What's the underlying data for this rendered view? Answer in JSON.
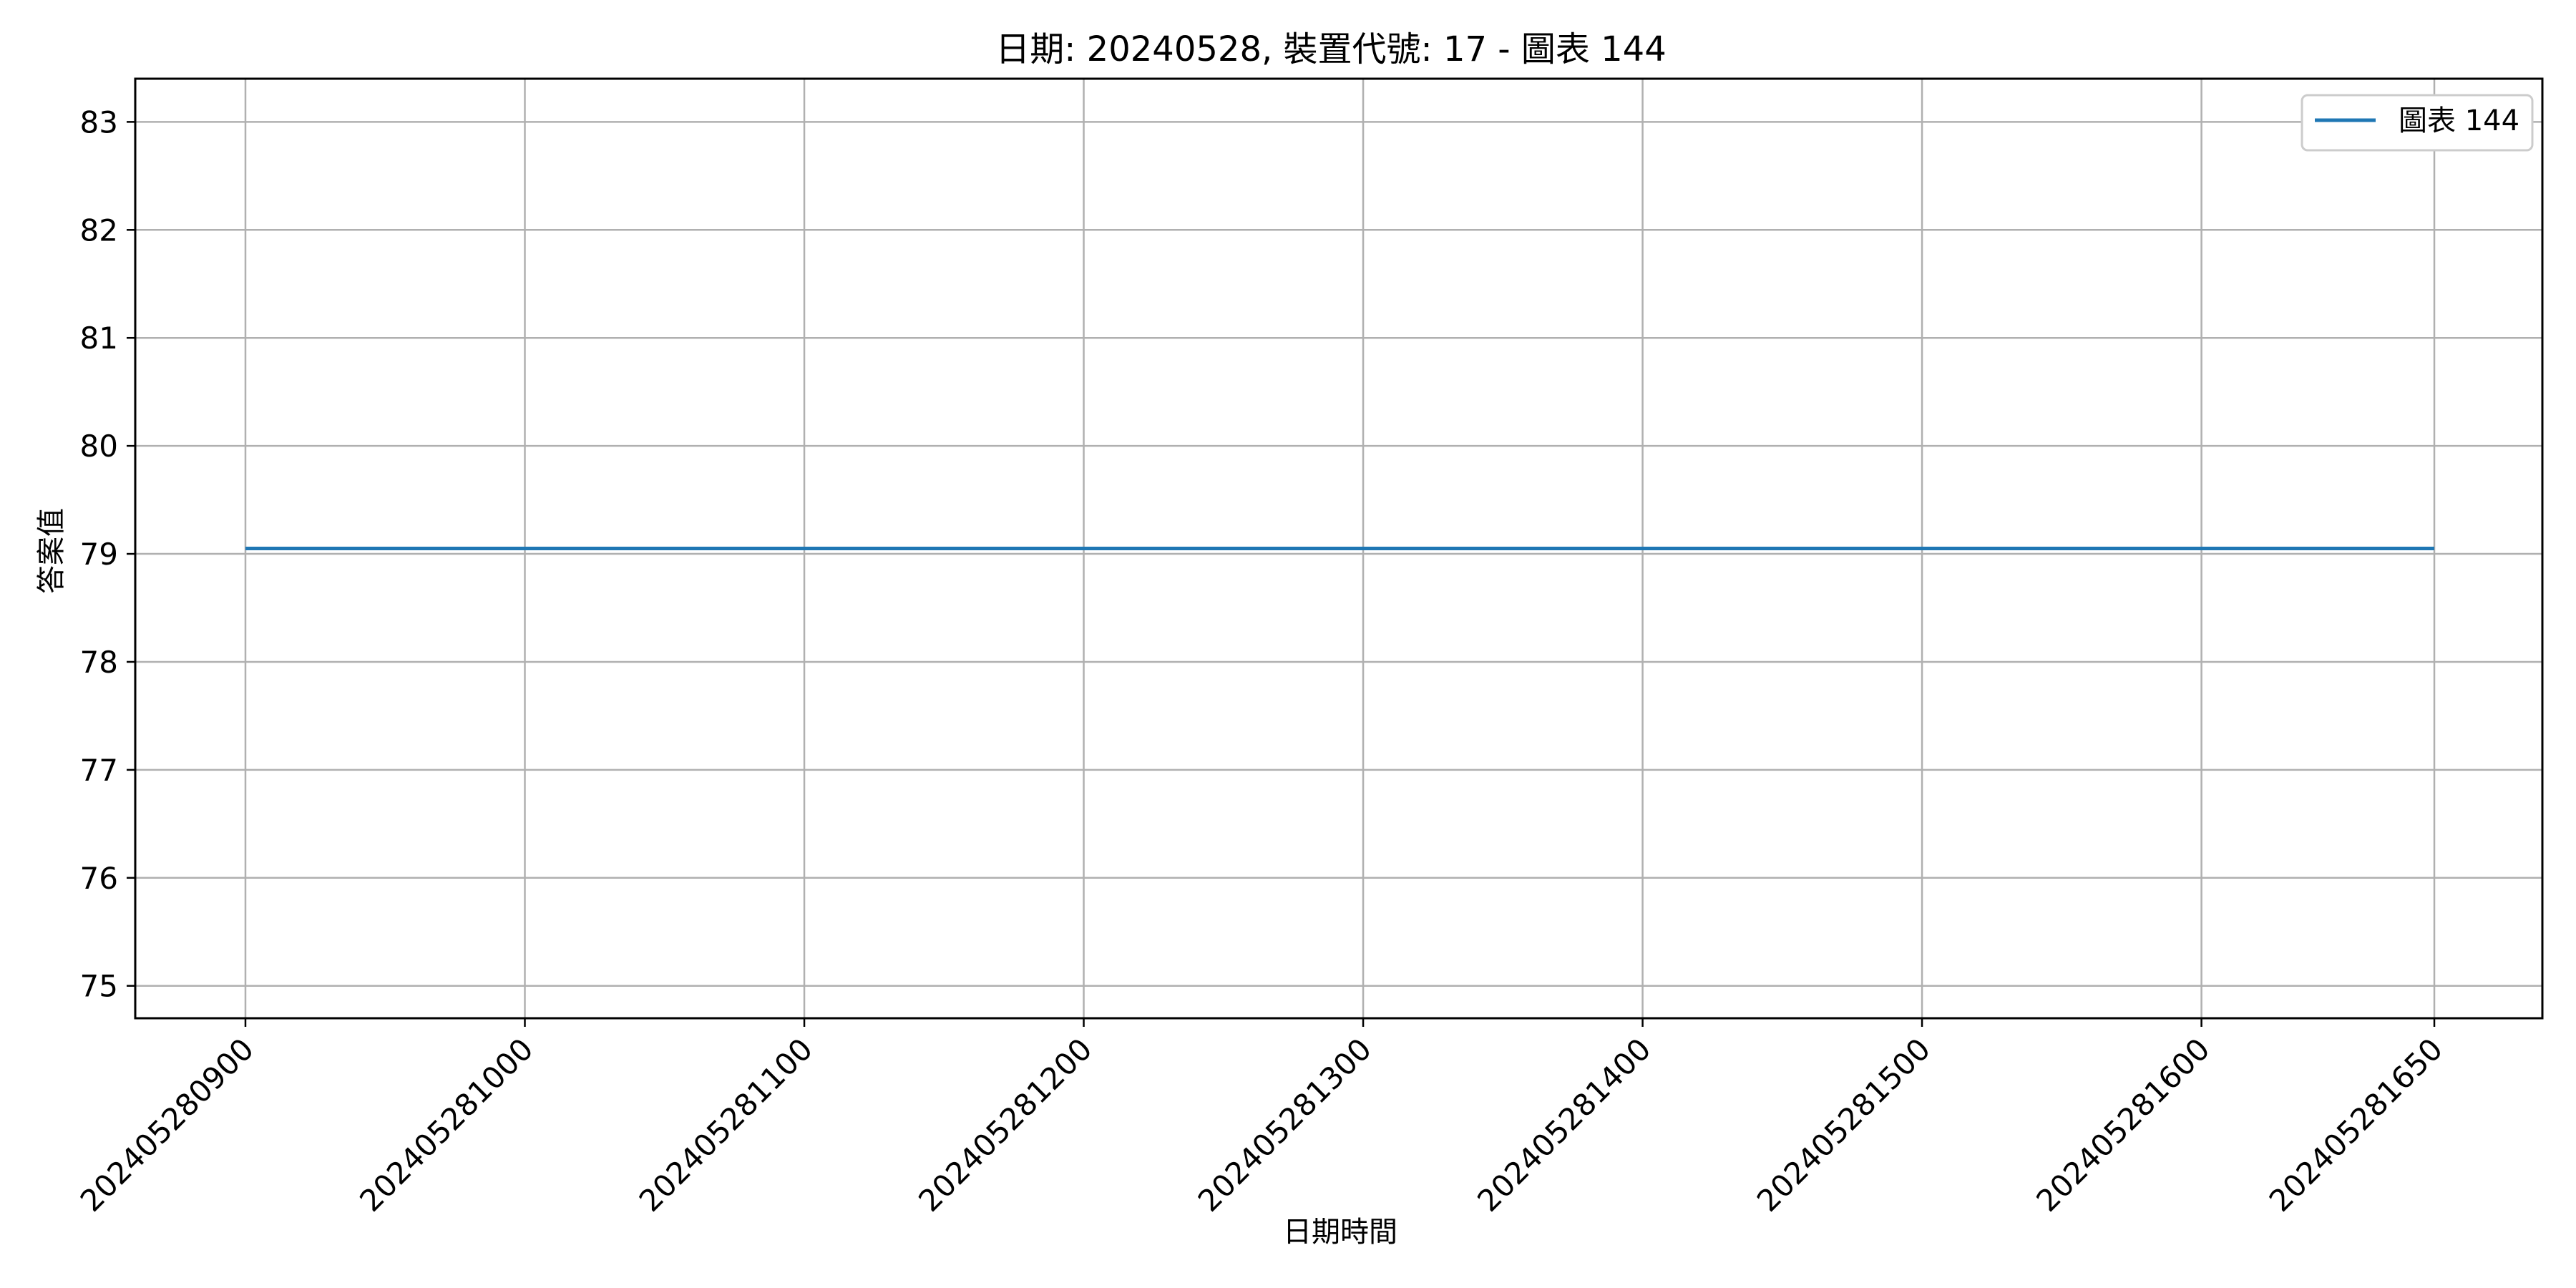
{
  "chart_data": {
    "type": "line",
    "title": "日期: 20240528, 裝置代號: 17 - 圖表 144",
    "xlabel": "日期時間",
    "ylabel": "答案值",
    "x_tick_labels": [
      "202405280900",
      "202405281000",
      "202405281100",
      "202405281200",
      "202405281300",
      "202405281400",
      "202405281500",
      "202405281600",
      "202405281650"
    ],
    "y_ticks": [
      75,
      76,
      77,
      78,
      79,
      80,
      81,
      82,
      83
    ],
    "ylim": [
      74.7,
      83.4
    ],
    "grid": true,
    "legend_position": "top-right",
    "series": [
      {
        "name": "圖表 144",
        "color": "#1f77b4",
        "x": [
          "202405280900",
          "202405281000",
          "202405281100",
          "202405281200",
          "202405281300",
          "202405281400",
          "202405281500",
          "202405281600",
          "202405281650"
        ],
        "values": [
          79.05,
          79.05,
          79.05,
          79.05,
          79.05,
          79.05,
          79.05,
          79.05,
          79.05
        ]
      }
    ]
  }
}
